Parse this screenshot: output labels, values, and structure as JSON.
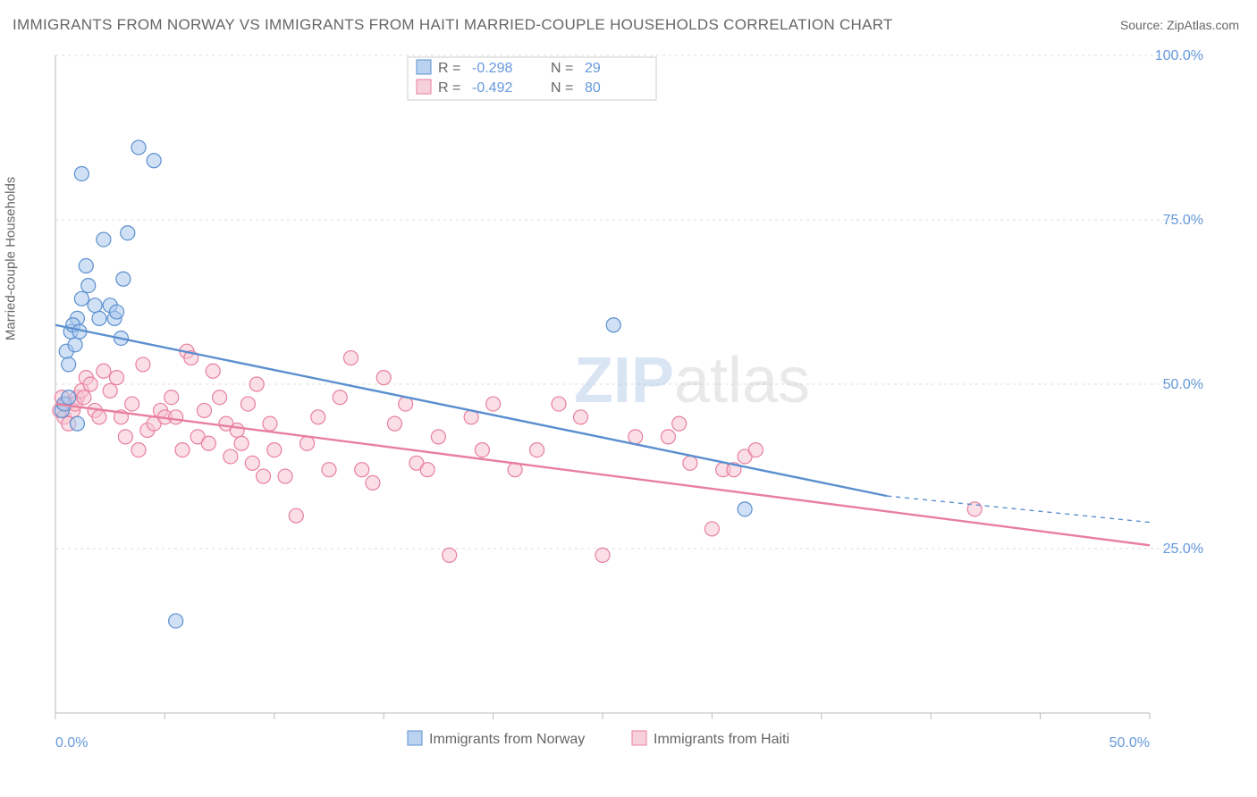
{
  "title": "IMMIGRANTS FROM NORWAY VS IMMIGRANTS FROM HAITI MARRIED-COUPLE HOUSEHOLDS CORRELATION CHART",
  "source_label": "Source: ZipAtlas.com",
  "y_axis_label": "Married-couple Households",
  "watermark_text": "ZIPatlas",
  "chart": {
    "type": "scatter",
    "xlim": [
      0,
      50
    ],
    "ylim": [
      0,
      100
    ],
    "x_ticks": [
      0,
      50
    ],
    "x_tick_labels": [
      "0.0%",
      "50.0%"
    ],
    "x_minor_ticks": [
      5,
      10,
      15,
      20,
      25,
      30,
      35,
      40,
      45
    ],
    "y_ticks": [
      25,
      50,
      75,
      100
    ],
    "y_tick_labels": [
      "25.0%",
      "50.0%",
      "75.0%",
      "100.0%"
    ],
    "grid_color": "#dddddd",
    "axis_color": "#bbbbbb",
    "background_color": "#ffffff",
    "tick_label_color": "#6699dd",
    "marker_radius": 8,
    "marker_stroke_width": 1.2,
    "trendline_width": 2.4,
    "series": [
      {
        "name": "Immigrants from Norway",
        "fill": "#a9c8ec",
        "stroke": "#5b8fcf",
        "fill_opacity": 0.55,
        "points": [
          [
            0.3,
            46
          ],
          [
            0.5,
            55
          ],
          [
            0.6,
            53
          ],
          [
            0.7,
            58
          ],
          [
            0.9,
            56
          ],
          [
            1.0,
            60
          ],
          [
            1.2,
            63
          ],
          [
            1.4,
            68
          ],
          [
            1.5,
            65
          ],
          [
            1.2,
            82
          ],
          [
            2.2,
            72
          ],
          [
            2.5,
            62
          ],
          [
            2.7,
            60
          ],
          [
            2.8,
            61
          ],
          [
            3.0,
            57
          ],
          [
            3.1,
            66
          ],
          [
            3.3,
            73
          ],
          [
            3.8,
            86
          ],
          [
            4.5,
            84
          ],
          [
            5.5,
            14
          ],
          [
            0.4,
            47
          ],
          [
            0.8,
            59
          ],
          [
            0.6,
            48
          ],
          [
            1.0,
            44
          ],
          [
            1.1,
            58
          ],
          [
            25.5,
            59
          ],
          [
            31.5,
            31
          ],
          [
            2.0,
            60
          ],
          [
            1.8,
            62
          ]
        ],
        "R": "-0.298",
        "N": "29",
        "trendline": {
          "x1": 0,
          "y1": 59,
          "x2": 38,
          "y2": 33,
          "dash_x2": 50,
          "dash_y2": 29
        }
      },
      {
        "name": "Immigrants from Haiti",
        "fill": "#f5c5d1",
        "stroke": "#e87f9e",
        "fill_opacity": 0.55,
        "points": [
          [
            0.2,
            46
          ],
          [
            0.3,
            48
          ],
          [
            0.4,
            45
          ],
          [
            0.5,
            47
          ],
          [
            0.6,
            44
          ],
          [
            0.8,
            46
          ],
          [
            1.0,
            48
          ],
          [
            1.2,
            49
          ],
          [
            1.4,
            51
          ],
          [
            1.6,
            50
          ],
          [
            1.8,
            46
          ],
          [
            2.0,
            45
          ],
          [
            2.2,
            52
          ],
          [
            2.5,
            49
          ],
          [
            2.8,
            51
          ],
          [
            3.0,
            45
          ],
          [
            3.2,
            42
          ],
          [
            3.5,
            47
          ],
          [
            3.8,
            40
          ],
          [
            4.0,
            53
          ],
          [
            4.2,
            43
          ],
          [
            4.5,
            44
          ],
          [
            4.8,
            46
          ],
          [
            5.0,
            45
          ],
          [
            5.3,
            48
          ],
          [
            5.5,
            45
          ],
          [
            5.8,
            40
          ],
          [
            6.0,
            55
          ],
          [
            6.2,
            54
          ],
          [
            6.5,
            42
          ],
          [
            6.8,
            46
          ],
          [
            7.0,
            41
          ],
          [
            7.2,
            52
          ],
          [
            7.5,
            48
          ],
          [
            7.8,
            44
          ],
          [
            8.0,
            39
          ],
          [
            8.3,
            43
          ],
          [
            8.5,
            41
          ],
          [
            8.8,
            47
          ],
          [
            9.0,
            38
          ],
          [
            9.2,
            50
          ],
          [
            9.5,
            36
          ],
          [
            9.8,
            44
          ],
          [
            10.0,
            40
          ],
          [
            10.5,
            36
          ],
          [
            11.0,
            30
          ],
          [
            11.5,
            41
          ],
          [
            12.0,
            45
          ],
          [
            12.5,
            37
          ],
          [
            13.0,
            48
          ],
          [
            13.5,
            54
          ],
          [
            14.0,
            37
          ],
          [
            14.5,
            35
          ],
          [
            15.0,
            51
          ],
          [
            15.5,
            44
          ],
          [
            16.0,
            47
          ],
          [
            16.5,
            38
          ],
          [
            17.0,
            37
          ],
          [
            17.5,
            42
          ],
          [
            18.0,
            24
          ],
          [
            19.0,
            45
          ],
          [
            19.5,
            40
          ],
          [
            20.0,
            47
          ],
          [
            21.0,
            37
          ],
          [
            22.0,
            40
          ],
          [
            23.0,
            47
          ],
          [
            24.0,
            45
          ],
          [
            25.0,
            24
          ],
          [
            26.5,
            42
          ],
          [
            28.0,
            42
          ],
          [
            28.5,
            44
          ],
          [
            29.0,
            38
          ],
          [
            30.0,
            28
          ],
          [
            30.5,
            37
          ],
          [
            31.0,
            37
          ],
          [
            31.5,
            39
          ],
          [
            32.0,
            40
          ],
          [
            42.0,
            31
          ],
          [
            0.9,
            47
          ],
          [
            1.3,
            48
          ]
        ],
        "R": "-0.492",
        "N": "80",
        "trendline": {
          "x1": 0,
          "y1": 47,
          "x2": 50,
          "y2": 25.5
        }
      }
    ]
  },
  "legend_top": {
    "R_label": "R =",
    "N_label": "N ="
  },
  "legend_bottom": {
    "norway_label": "Immigrants from Norway",
    "haiti_label": "Immigrants from Haiti"
  }
}
